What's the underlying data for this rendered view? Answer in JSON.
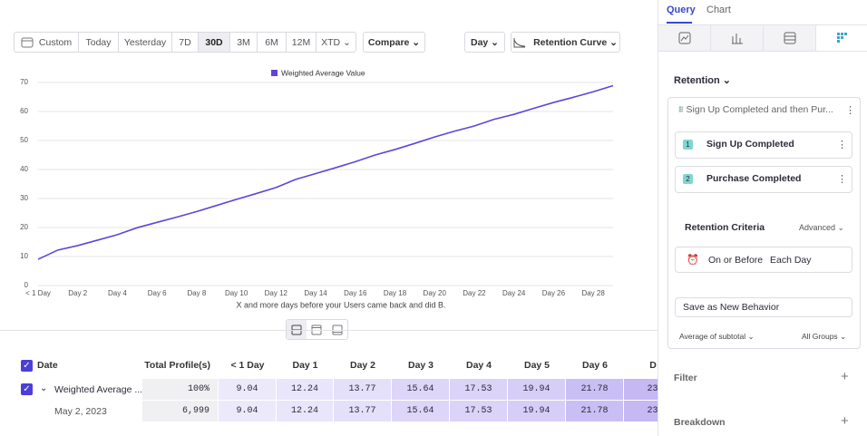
{
  "toolbar": {
    "range_buttons": [
      "Custom",
      "Today",
      "Yesterday",
      "7D",
      "30D",
      "3M",
      "6M",
      "12M",
      "XTD"
    ],
    "selected": "30D",
    "compare": "Compare",
    "interval": "Day",
    "chart_kind": "Retention Curve"
  },
  "chart_data": {
    "type": "line",
    "x_label": "X and more days before your Users came back and did B.",
    "categories": [
      "< 1 Day",
      null,
      "Day 2",
      null,
      "Day 4",
      null,
      "Day 6",
      null,
      "Day 8",
      null,
      "Day 10",
      null,
      "Day 12",
      null,
      "Day 14",
      null,
      "Day 16",
      null,
      "Day 18",
      null,
      "Day 20",
      null,
      "Day 22",
      null,
      "Day 24",
      null,
      "Day 26",
      null,
      "Day 28",
      null
    ],
    "series": [
      {
        "name": "Weighted Average Value",
        "color": "#6244d6",
        "values": [
          9.04,
          12.24,
          13.77,
          15.64,
          17.53,
          19.94,
          21.78,
          23.6,
          25.5,
          27.6,
          29.7,
          31.7,
          33.8,
          36.6,
          38.6,
          40.6,
          42.7,
          45.0,
          46.9,
          49.0,
          51.2,
          53.2,
          55.0,
          57.3,
          59.0,
          61.1,
          63.1,
          64.9,
          66.8,
          68.9
        ]
      }
    ],
    "ylim": [
      0,
      70
    ],
    "yticks": [
      0,
      10,
      20,
      30,
      40,
      50,
      60,
      70
    ],
    "grid": true
  },
  "table": {
    "header": [
      "Date",
      "Total Profile(s)",
      "< 1 Day",
      "Day 1",
      "Day 2",
      "Day 3",
      "Day 4",
      "Day 5",
      "Day 6",
      "D"
    ],
    "rows": [
      [
        "Weighted Average ...",
        "100%",
        "9.04",
        "12.24",
        "13.77",
        "15.64",
        "17.53",
        "19.94",
        "21.78",
        "23"
      ],
      [
        "May 2, 2023",
        "6,999",
        "9.04",
        "12.24",
        "13.77",
        "15.64",
        "17.53",
        "19.94",
        "21.78",
        "23"
      ]
    ]
  },
  "sidebar": {
    "tabs": [
      "Query",
      "Chart"
    ],
    "report": "Retention",
    "funnel": "Sign Up Completed and then Pur...",
    "steps": [
      {
        "number": "1",
        "label": "Sign Up Completed"
      },
      {
        "number": "2",
        "label": "Purchase Completed"
      }
    ],
    "criteria": "Retention Criteria",
    "advanced": "Advanced",
    "on_or_before": "On or Before",
    "each_day": "Each Day",
    "save": "Save as New Behavior",
    "average": "Average of subtotal",
    "groups": "All Groups",
    "filter": "Filter",
    "breakdown": "Breakdown"
  }
}
